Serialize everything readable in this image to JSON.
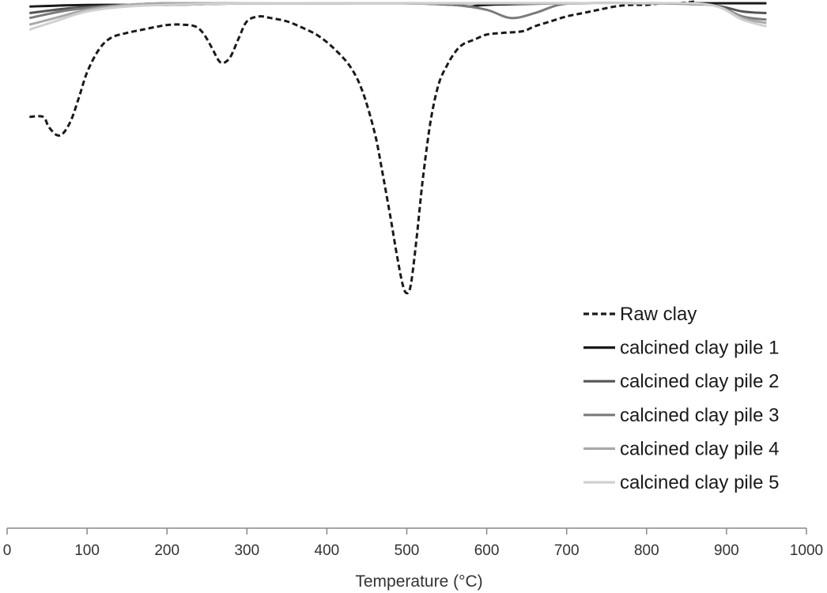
{
  "chart_data": {
    "type": "line",
    "title": "",
    "xlabel": "Temperature (°C)",
    "ylabel": "",
    "xlim": [
      0,
      1000
    ],
    "ylim": [
      -1.8,
      0.0
    ],
    "xticks": [
      0,
      100,
      200,
      300,
      400,
      500,
      600,
      700,
      800,
      900,
      1000
    ],
    "grid": false,
    "legend_position": "right",
    "series": [
      {
        "name": "Raw clay",
        "color": "#1a1a1a",
        "dash": true,
        "x": [
          28,
          45,
          52,
          62,
          70,
          80,
          90,
          100,
          115,
          130,
          150,
          170,
          190,
          205,
          220,
          235,
          245,
          255,
          265,
          272,
          280,
          290,
          300,
          315,
          330,
          350,
          370,
          390,
          410,
          430,
          445,
          460,
          470,
          480,
          488,
          495,
          500,
          505,
          512,
          520,
          530,
          540,
          550,
          560,
          570,
          585,
          600,
          620,
          645,
          660,
          680,
          700,
          720,
          740,
          760,
          780,
          800,
          820,
          840,
          860
        ],
        "y": [
          -0.7,
          -0.7,
          -0.76,
          -0.81,
          -0.8,
          -0.72,
          -0.58,
          -0.43,
          -0.29,
          -0.22,
          -0.19,
          -0.17,
          -0.15,
          -0.14,
          -0.14,
          -0.15,
          -0.19,
          -0.27,
          -0.36,
          -0.37,
          -0.33,
          -0.22,
          -0.12,
          -0.09,
          -0.1,
          -0.12,
          -0.16,
          -0.21,
          -0.29,
          -0.4,
          -0.55,
          -0.8,
          -1.05,
          -1.32,
          -1.55,
          -1.72,
          -1.77,
          -1.72,
          -1.45,
          -1.08,
          -0.72,
          -0.5,
          -0.39,
          -0.31,
          -0.26,
          -0.23,
          -0.2,
          -0.19,
          -0.18,
          -0.15,
          -0.12,
          -0.09,
          -0.07,
          -0.05,
          -0.03,
          -0.02,
          -0.02,
          -0.01,
          -0.01,
          0.0
        ]
      },
      {
        "name": "calcined clay pile 1",
        "color": "#1a1a1a",
        "dash": false,
        "x": [
          28,
          100,
          200,
          300,
          400,
          500,
          560,
          580,
          600,
          700,
          800,
          900,
          950
        ],
        "y": [
          -0.03,
          -0.02,
          -0.02,
          -0.01,
          -0.01,
          -0.01,
          -0.02,
          -0.03,
          -0.02,
          -0.01,
          -0.01,
          -0.01,
          -0.01
        ]
      },
      {
        "name": "calcined clay pile 2",
        "color": "#555555",
        "dash": false,
        "x": [
          28,
          80,
          150,
          200,
          300,
          400,
          500,
          600,
          700,
          800,
          880,
          920,
          950
        ],
        "y": [
          -0.07,
          -0.04,
          -0.02,
          -0.01,
          -0.01,
          -0.01,
          -0.01,
          -0.01,
          -0.01,
          -0.01,
          -0.02,
          -0.06,
          -0.07
        ]
      },
      {
        "name": "calcined clay pile 3",
        "color": "#7b7b7b",
        "dash": false,
        "x": [
          28,
          80,
          150,
          200,
          300,
          400,
          500,
          560,
          600,
          630,
          660,
          690,
          720,
          800,
          880,
          920,
          950
        ],
        "y": [
          -0.1,
          -0.05,
          -0.02,
          -0.01,
          -0.01,
          -0.01,
          -0.01,
          -0.02,
          -0.05,
          -0.1,
          -0.07,
          -0.02,
          -0.01,
          -0.01,
          -0.02,
          -0.09,
          -0.11
        ]
      },
      {
        "name": "calcined clay pile 4",
        "color": "#a9a9a9",
        "dash": false,
        "x": [
          28,
          60,
          100,
          150,
          200,
          300,
          400,
          500,
          600,
          700,
          800,
          880,
          920,
          950
        ],
        "y": [
          -0.14,
          -0.1,
          -0.05,
          -0.02,
          -0.01,
          -0.01,
          -0.01,
          -0.01,
          -0.01,
          -0.01,
          -0.01,
          -0.02,
          -0.1,
          -0.13
        ]
      },
      {
        "name": "calcined clay pile 5",
        "color": "#d0d0d0",
        "dash": false,
        "x": [
          28,
          60,
          100,
          150,
          200,
          300,
          400,
          500,
          600,
          700,
          800,
          880,
          920,
          950
        ],
        "y": [
          -0.17,
          -0.12,
          -0.06,
          -0.03,
          -0.02,
          -0.01,
          -0.01,
          -0.01,
          -0.01,
          -0.01,
          -0.01,
          -0.02,
          -0.11,
          -0.15
        ]
      }
    ]
  }
}
